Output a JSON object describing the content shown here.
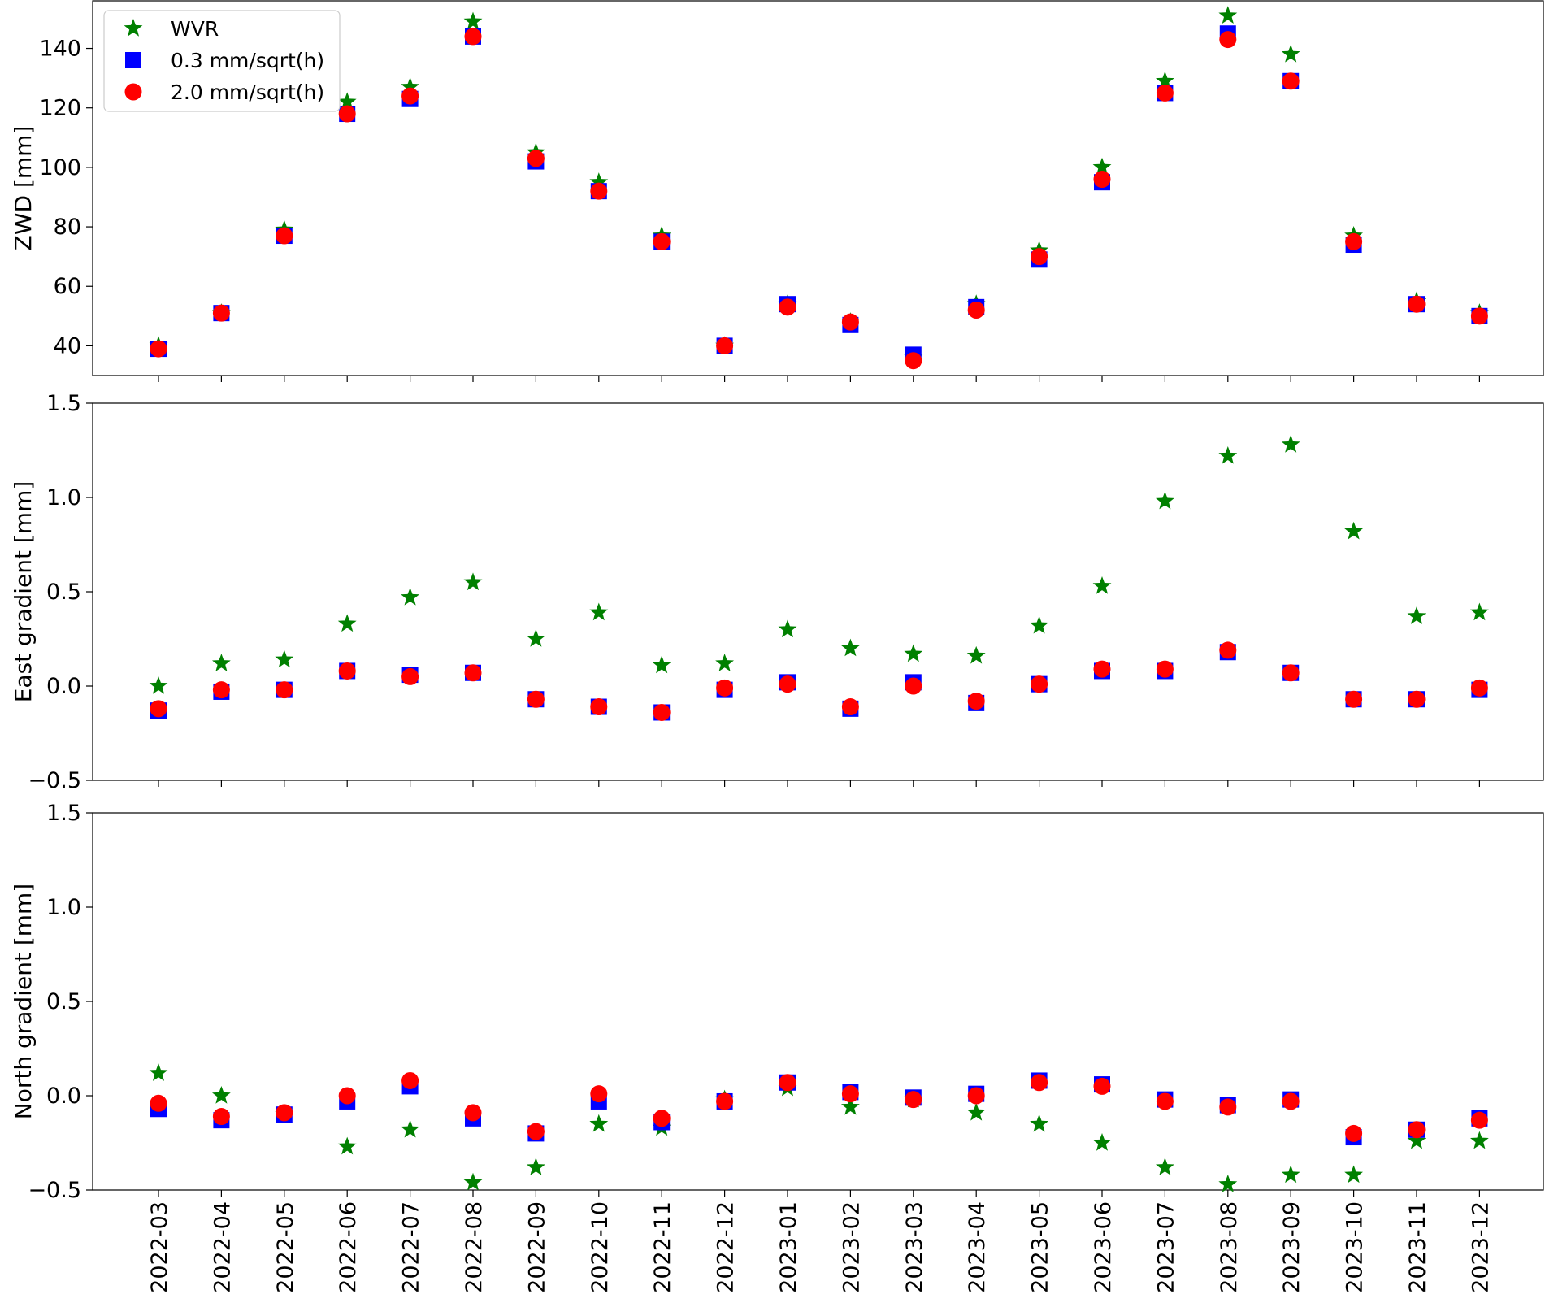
{
  "chart_data": [
    {
      "type": "scatter",
      "panel": "zwd",
      "ylabel": "ZWD [mm]",
      "ylim": [
        30,
        156
      ],
      "yticks": [
        40,
        60,
        80,
        100,
        120,
        140
      ],
      "ytick_labels": [
        "40",
        "60",
        "80",
        "100",
        "120",
        "140"
      ],
      "legend": {
        "placement": "top-left"
      },
      "series": [
        {
          "name": "WVR",
          "marker": "star",
          "color": "#008000",
          "values": [
            40,
            51,
            79,
            122,
            127,
            149,
            105,
            95,
            77,
            40,
            54,
            48,
            36,
            54,
            72,
            100,
            129,
            151,
            138,
            77,
            55,
            51
          ]
        },
        {
          "name": "0.3 mm/sqrt(h)",
          "marker": "square",
          "color": "#0000ff",
          "values": [
            39,
            51,
            77,
            118,
            123,
            144,
            102,
            92,
            75,
            40,
            54,
            47,
            37,
            53,
            69,
            95,
            125,
            145,
            129,
            74,
            54,
            50
          ]
        },
        {
          "name": "2.0 mm/sqrt(h)",
          "marker": "circle",
          "color": "#ff0000",
          "values": [
            39,
            51,
            77,
            118,
            124,
            144,
            103,
            92,
            75,
            40,
            53,
            48,
            35,
            52,
            70,
            96,
            125,
            143,
            129,
            75,
            54,
            50
          ]
        }
      ]
    },
    {
      "type": "scatter",
      "panel": "east",
      "ylabel": "East gradient [mm]",
      "ylim": [
        -0.5,
        1.5
      ],
      "yticks": [
        -0.5,
        0.0,
        0.5,
        1.0,
        1.5
      ],
      "ytick_labels": [
        "−0.5",
        "0.0",
        "0.5",
        "1.0",
        "1.5"
      ],
      "series": [
        {
          "name": "WVR",
          "marker": "star",
          "color": "#008000",
          "values": [
            0.0,
            0.12,
            0.14,
            0.33,
            0.47,
            0.55,
            0.25,
            0.39,
            0.11,
            0.12,
            0.3,
            0.2,
            0.17,
            0.16,
            0.32,
            0.53,
            0.98,
            1.22,
            1.28,
            0.82,
            0.37,
            0.39
          ]
        },
        {
          "name": "0.3 mm/sqrt(h)",
          "marker": "square",
          "color": "#0000ff",
          "values": [
            -0.13,
            -0.03,
            -0.02,
            0.08,
            0.06,
            0.07,
            -0.07,
            -0.11,
            -0.14,
            -0.02,
            0.02,
            -0.12,
            0.02,
            -0.09,
            0.01,
            0.08,
            0.08,
            0.18,
            0.07,
            -0.07,
            -0.07,
            -0.02
          ]
        },
        {
          "name": "2.0 mm/sqrt(h)",
          "marker": "circle",
          "color": "#ff0000",
          "values": [
            -0.12,
            -0.02,
            -0.02,
            0.08,
            0.05,
            0.07,
            -0.07,
            -0.11,
            -0.14,
            -0.01,
            0.01,
            -0.11,
            0.0,
            -0.08,
            0.01,
            0.09,
            0.09,
            0.19,
            0.07,
            -0.07,
            -0.07,
            -0.01
          ]
        }
      ]
    },
    {
      "type": "scatter",
      "panel": "north",
      "ylabel": "North gradient [mm]",
      "ylim": [
        -0.5,
        1.5
      ],
      "yticks": [
        -0.5,
        0.0,
        0.5,
        1.0,
        1.5
      ],
      "ytick_labels": [
        "−0.5",
        "0.0",
        "0.5",
        "1.0",
        "1.5"
      ],
      "series": [
        {
          "name": "WVR",
          "marker": "star",
          "color": "#008000",
          "values": [
            0.12,
            0.0,
            -0.1,
            -0.27,
            -0.18,
            -0.46,
            -0.38,
            -0.15,
            -0.17,
            -0.02,
            0.04,
            -0.06,
            -0.02,
            -0.09,
            -0.15,
            -0.25,
            -0.38,
            -0.47,
            -0.42,
            -0.42,
            -0.24,
            -0.24
          ]
        },
        {
          "name": "0.3 mm/sqrt(h)",
          "marker": "square",
          "color": "#0000ff",
          "values": [
            -0.07,
            -0.13,
            -0.1,
            -0.03,
            0.05,
            -0.12,
            -0.2,
            -0.03,
            -0.14,
            -0.03,
            0.07,
            0.02,
            -0.01,
            0.01,
            0.08,
            0.06,
            -0.02,
            -0.05,
            -0.02,
            -0.22,
            -0.18,
            -0.12
          ]
        },
        {
          "name": "2.0 mm/sqrt(h)",
          "marker": "circle",
          "color": "#ff0000",
          "values": [
            -0.04,
            -0.11,
            -0.09,
            0.0,
            0.08,
            -0.09,
            -0.19,
            0.01,
            -0.12,
            -0.03,
            0.07,
            0.01,
            -0.02,
            0.0,
            0.07,
            0.05,
            -0.03,
            -0.06,
            -0.03,
            -0.2,
            -0.18,
            -0.13
          ]
        }
      ]
    }
  ],
  "x_categories": [
    "2022-03",
    "2022-04",
    "2022-05",
    "2022-06",
    "2022-07",
    "2022-08",
    "2022-09",
    "2022-10",
    "2022-11",
    "2022-12",
    "2023-01",
    "2023-02",
    "2023-03",
    "2023-04",
    "2023-05",
    "2023-06",
    "2023-07",
    "2023-08",
    "2023-09",
    "2023-10",
    "2023-11",
    "2023-12"
  ]
}
